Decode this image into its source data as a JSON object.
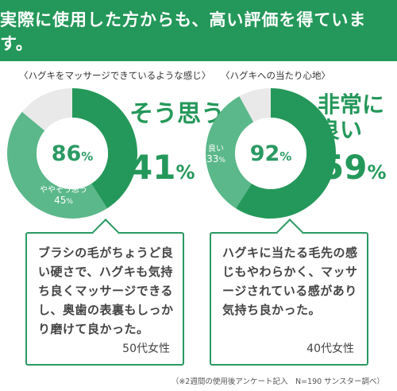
{
  "banner": {
    "title": "実際に使用した方からも、高い評価を得ています。"
  },
  "colors": {
    "primary": "#24985a",
    "mid": "#5bb88a",
    "light": "#e9e9e9",
    "text": "#444444"
  },
  "chart_data": [
    {
      "type": "pie",
      "title": "〈ハグキをマッサージできているような感じ〉",
      "center": {
        "value": "86",
        "unit": "%"
      },
      "series": [
        {
          "name": "そう思う",
          "value": 41
        },
        {
          "name": "ややそう思う",
          "value": 45
        },
        {
          "name": "",
          "value": 14
        }
      ],
      "highlight": {
        "label": "そう思う",
        "value": "41",
        "unit": "%"
      },
      "inner_label": {
        "name": "ややそう思う",
        "value": "45",
        "unit": "%"
      }
    },
    {
      "type": "pie",
      "title": "〈ハグキへの当たり心地〉",
      "center": {
        "value": "92",
        "unit": "%"
      },
      "series": [
        {
          "name": "非常に良い",
          "value": 59
        },
        {
          "name": "良い",
          "value": 33
        },
        {
          "name": "",
          "value": 8
        }
      ],
      "highlight": {
        "label_line1": "非常に",
        "label_line2": "良い",
        "value": "59",
        "unit": "%"
      },
      "inner_label": {
        "name": "良い",
        "value": "33",
        "unit": "%"
      }
    }
  ],
  "testimonials": [
    {
      "text": "ブラシの毛がちょうど良い硬さで、ハグキも気持ち良くマッサージできるし、奥歯の表裏もしっかり磨けて良かった。",
      "author": "50代女性"
    },
    {
      "text": "ハグキに当たる毛先の感じもやわらかく、マッサージされている感があり気持ち良かった。",
      "author": "40代女性"
    }
  ],
  "footnote": "（※2週間の使用後アンケート記入　N=190 サンスター調べ）"
}
